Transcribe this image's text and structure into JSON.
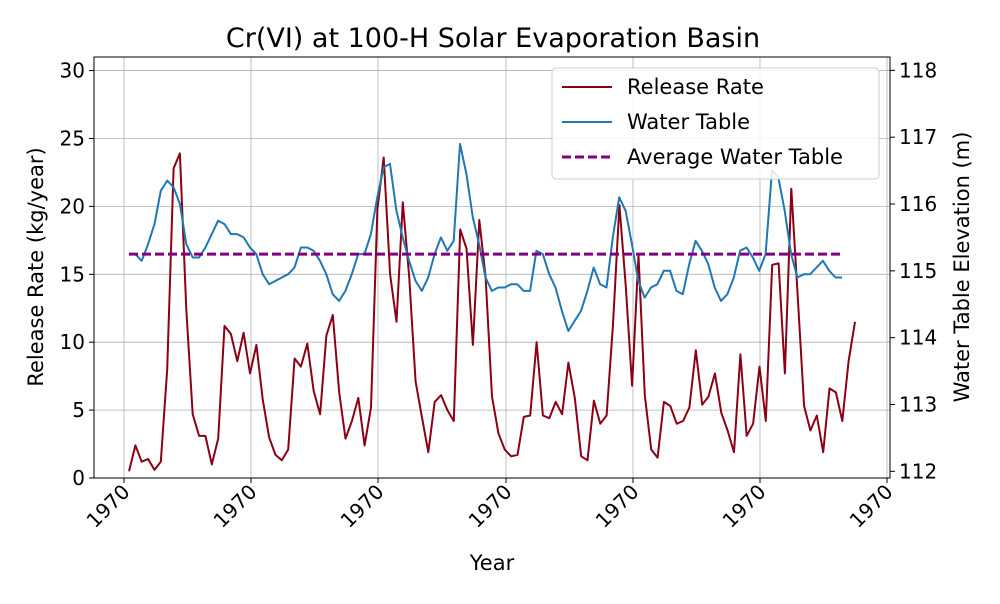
{
  "chart_data": {
    "type": "line",
    "title": "Cr(VI) at 100-H Solar Evaporation Basin",
    "xlabel": "Year",
    "ylabel": "Release Rate (kg/year)",
    "y2label": "Water Table Elevation (m)",
    "x_tick_labels": [
      "1970",
      "1970",
      "1970",
      "1970",
      "1970",
      "1970",
      "1970"
    ],
    "y_ticks": [
      0,
      5,
      10,
      15,
      20,
      25,
      30
    ],
    "y2_ticks": [
      112,
      113,
      114,
      115,
      116,
      117,
      118
    ],
    "ylim": [
      0,
      31
    ],
    "y2lim": [
      111.9,
      118.2
    ],
    "grid": true,
    "legend_position": "top-right",
    "series": [
      {
        "name": "Release Rate",
        "axis": "left",
        "color": "#8b0015",
        "values": [
          0.5,
          2.4,
          1.2,
          1.4,
          0.6,
          1.2,
          8.0,
          22.8,
          23.9,
          12.4,
          4.7,
          3.1,
          3.1,
          1.0,
          2.9,
          11.2,
          10.6,
          8.6,
          10.7,
          7.7,
          9.8,
          5.8,
          3.0,
          1.7,
          1.3,
          2.1,
          8.8,
          8.2,
          9.9,
          6.4,
          4.7,
          10.5,
          12.0,
          6.3,
          2.9,
          4.2,
          5.9,
          2.4,
          5.2,
          19.8,
          23.6,
          15.0,
          11.5,
          20.3,
          14.8,
          7.1,
          4.5,
          1.9,
          5.6,
          6.1,
          5.0,
          4.2,
          18.3,
          16.9,
          9.8,
          19.0,
          14.8,
          6.0,
          3.3,
          2.1,
          1.6,
          1.7,
          4.5,
          4.6,
          10.0,
          4.6,
          4.4,
          5.6,
          4.7,
          8.5,
          5.9,
          1.6,
          1.3,
          5.7,
          4.0,
          4.6,
          11.3,
          20.1,
          14.2,
          6.8,
          16.4,
          6.1,
          2.1,
          1.5,
          5.6,
          5.3,
          4.0,
          4.2,
          5.2,
          9.4,
          5.4,
          6.0,
          7.7,
          4.8,
          3.5,
          1.9,
          9.1,
          3.1,
          4.0,
          8.2,
          4.2,
          15.7,
          15.8,
          7.7,
          21.3,
          13.4,
          5.3,
          3.5,
          4.6,
          1.9,
          6.6,
          6.3,
          4.2,
          8.6,
          11.5
        ]
      },
      {
        "name": "Water Table",
        "axis": "right",
        "color": "#1f77b4",
        "values": [
          115.25,
          115.25,
          115.15,
          115.4,
          115.7,
          116.2,
          116.35,
          116.25,
          116.0,
          115.4,
          115.2,
          115.2,
          115.35,
          115.55,
          115.75,
          115.7,
          115.55,
          115.55,
          115.5,
          115.35,
          115.25,
          114.95,
          114.8,
          114.85,
          114.9,
          114.95,
          115.05,
          115.35,
          115.35,
          115.3,
          115.15,
          114.95,
          114.65,
          114.55,
          114.7,
          114.95,
          115.25,
          115.25,
          115.55,
          116.1,
          116.55,
          116.6,
          115.9,
          115.5,
          115.15,
          114.85,
          114.7,
          114.9,
          115.25,
          115.5,
          115.3,
          115.45,
          116.9,
          116.45,
          115.8,
          115.4,
          114.9,
          114.7,
          114.75,
          114.75,
          114.8,
          114.8,
          114.7,
          114.7,
          115.3,
          115.25,
          114.95,
          114.75,
          114.4,
          114.1,
          114.25,
          114.4,
          114.7,
          115.05,
          114.8,
          114.75,
          115.5,
          116.1,
          115.9,
          115.4,
          114.85,
          114.6,
          114.75,
          114.8,
          115.0,
          115.0,
          114.7,
          114.65,
          115.1,
          115.45,
          115.3,
          115.1,
          114.75,
          114.55,
          114.65,
          114.9,
          115.3,
          115.35,
          115.2,
          115.0,
          115.25,
          116.5,
          116.4,
          115.9,
          115.25,
          114.9,
          114.95,
          114.95,
          115.05,
          115.15,
          115.0,
          114.9,
          114.9
        ]
      },
      {
        "name": "Average Water Table",
        "axis": "right",
        "color": "#800080",
        "style": "dashed",
        "values": [
          115.25
        ]
      }
    ]
  }
}
